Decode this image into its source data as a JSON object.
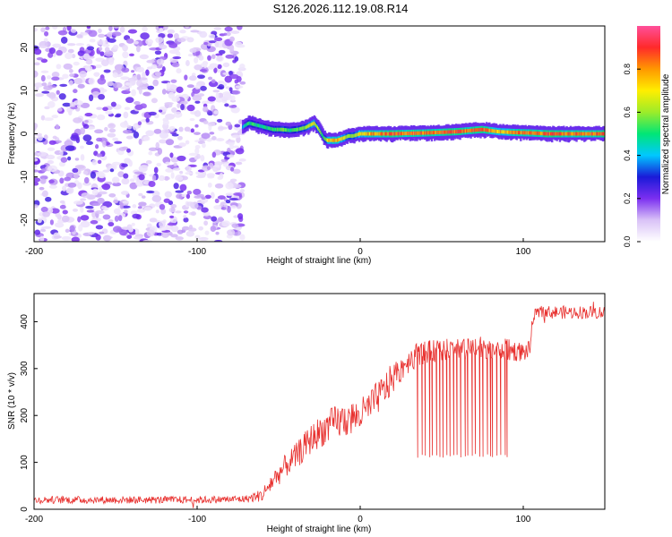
{
  "title": "S126.2026.112.19.08.R14",
  "colors": {
    "snr_line": "#e8312f",
    "spec_lo": "#7a22e0",
    "axis": "#000000",
    "colorbar_stops": [
      "#ffffff",
      "#d9c2f7",
      "#7b2ff0",
      "#1a1ad8",
      "#00c8ff",
      "#00e676",
      "#9cec2a",
      "#ffee00",
      "#ff9800",
      "#ff2a2a",
      "#ff4f9a"
    ]
  },
  "chart_data": [
    {
      "type": "heatmap",
      "name": "spectrogram",
      "xlabel": "Height of straight line (km)",
      "ylabel": "Frequency (Hz)",
      "xlim": [
        -200,
        150
      ],
      "ylim": [
        -25,
        25
      ],
      "xticks": [
        "-200",
        "-100",
        "0",
        "100"
      ],
      "xtick_values": [
        -200,
        -100,
        0,
        100
      ],
      "yticks": [
        "20",
        "10",
        "0",
        "-10",
        "-20"
      ],
      "ytick_values": [
        20,
        10,
        0,
        -10,
        -20
      ],
      "noise_region_x": [
        -200,
        -72
      ],
      "ridge": {
        "x": [
          -72,
          -68,
          -63,
          -58,
          -53,
          -48,
          -43,
          -38,
          -33,
          -28,
          -25,
          -22,
          -20,
          -18,
          -14,
          -10,
          -7,
          -4,
          0,
          5,
          20,
          40,
          60,
          75,
          85,
          95,
          105,
          115,
          125,
          135,
          150
        ],
        "freq": [
          1.5,
          2.5,
          2.0,
          1.5,
          1.0,
          1.0,
          0.8,
          1.0,
          1.5,
          2.5,
          1.0,
          -1.0,
          -1.5,
          -1.5,
          -1.5,
          -1.0,
          -0.5,
          -0.5,
          0,
          0,
          0,
          0.2,
          0.5,
          1.0,
          0.5,
          0.3,
          0.2,
          0,
          0,
          0,
          0
        ],
        "amplitude": [
          0.4,
          0.55,
          0.5,
          0.5,
          0.55,
          0.6,
          0.55,
          0.6,
          0.65,
          0.7,
          0.6,
          0.5,
          0.75,
          0.8,
          0.8,
          0.7,
          0.6,
          0.6,
          0.75,
          0.8,
          0.9,
          0.9,
          0.9,
          0.9,
          0.8,
          0.85,
          0.85,
          0.9,
          0.9,
          0.9,
          0.9
        ]
      },
      "colorbar": {
        "label": "Normalized spectral amplitude",
        "range": [
          0,
          1
        ],
        "ticks": [
          "0.0",
          "0.2",
          "0.4",
          "0.6",
          "0.8"
        ],
        "tick_values": [
          0.0,
          0.2,
          0.4,
          0.6,
          0.8
        ]
      }
    },
    {
      "type": "line",
      "name": "snr",
      "xlabel": "Height of straight line (km)",
      "ylabel": "SNR (10 * v/v)",
      "xlim": [
        -200,
        150
      ],
      "ylim": [
        0,
        460
      ],
      "xticks": [
        "-200",
        "-100",
        "0",
        "100"
      ],
      "xtick_values": [
        -200,
        -100,
        0,
        100
      ],
      "yticks": [
        "0",
        "100",
        "200",
        "300",
        "400"
      ],
      "ytick_values": [
        0,
        100,
        200,
        300,
        400
      ],
      "x": [
        -200,
        -150,
        -100,
        -70,
        -60,
        -55,
        -50,
        -45,
        -40,
        -35,
        -30,
        -25,
        -20,
        -15,
        -10,
        -5,
        0,
        5,
        10,
        15,
        20,
        25,
        30,
        35,
        40,
        50,
        60,
        70,
        80,
        90,
        100,
        104,
        106,
        110,
        120,
        130,
        140,
        150
      ],
      "y": [
        20,
        20,
        20,
        22,
        30,
        55,
        75,
        95,
        110,
        130,
        150,
        165,
        175,
        185,
        190,
        195,
        200,
        215,
        235,
        255,
        280,
        300,
        320,
        330,
        335,
        340,
        340,
        340,
        340,
        340,
        335,
        340,
        410,
        420,
        420,
        420,
        420,
        420
      ],
      "noise_amplitude": [
        8,
        8,
        8,
        8,
        14,
        22,
        24,
        26,
        28,
        30,
        32,
        34,
        36,
        38,
        38,
        38,
        36,
        36,
        36,
        36,
        34,
        30,
        28,
        26,
        24,
        24,
        24,
        24,
        24,
        24,
        20,
        20,
        14,
        14,
        14,
        14,
        14,
        14
      ],
      "dropouts": {
        "x_range": [
          35,
          92
        ],
        "floor": 110,
        "count": 26
      }
    }
  ]
}
